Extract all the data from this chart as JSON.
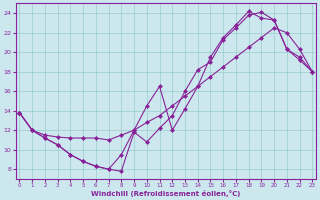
{
  "xlabel": "Windchill (Refroidissement éolien,°C)",
  "background_color": "#cce8ee",
  "grid_color": "#99cccc",
  "line_color": "#882299",
  "xlim": [
    -0.3,
    23.3
  ],
  "ylim": [
    7.0,
    25.0
  ],
  "yticks": [
    8,
    10,
    12,
    14,
    16,
    18,
    20,
    22,
    24
  ],
  "xticks": [
    0,
    1,
    2,
    3,
    4,
    5,
    6,
    7,
    8,
    9,
    10,
    11,
    12,
    13,
    14,
    15,
    16,
    17,
    18,
    19,
    20,
    21,
    22,
    23
  ],
  "curve1_x": [
    0,
    1,
    2,
    3,
    4,
    5,
    6,
    7,
    8,
    9,
    10,
    11,
    12,
    13,
    14,
    15,
    16,
    17,
    18,
    19,
    20,
    21,
    22,
    23
  ],
  "curve1_y": [
    13.8,
    12.0,
    11.2,
    10.5,
    9.5,
    8.8,
    8.3,
    8.0,
    7.8,
    11.8,
    10.8,
    12.2,
    13.5,
    16.0,
    18.2,
    19.0,
    21.3,
    22.5,
    23.8,
    24.1,
    23.3,
    20.3,
    19.2,
    18.0
  ],
  "curve2_x": [
    0,
    1,
    2,
    3,
    4,
    5,
    6,
    7,
    8,
    9,
    10,
    11,
    12,
    13,
    14,
    15,
    16,
    17,
    18,
    19,
    20,
    21,
    22,
    23
  ],
  "curve2_y": [
    13.8,
    12.0,
    11.5,
    11.3,
    11.2,
    11.2,
    11.2,
    11.0,
    11.5,
    12.0,
    12.8,
    13.5,
    14.5,
    15.5,
    16.5,
    17.5,
    18.5,
    19.5,
    20.5,
    21.5,
    22.5,
    22.0,
    20.3,
    18.0
  ],
  "curve3_x": [
    0,
    1,
    2,
    3,
    4,
    5,
    6,
    7,
    8,
    9,
    10,
    11,
    12,
    13,
    14,
    15,
    16,
    17,
    18,
    19,
    20,
    21,
    22,
    23
  ],
  "curve3_y": [
    13.8,
    12.0,
    11.2,
    10.5,
    9.5,
    8.8,
    8.3,
    8.0,
    9.5,
    12.0,
    14.5,
    16.5,
    12.0,
    14.2,
    16.5,
    19.5,
    21.5,
    22.8,
    24.2,
    23.5,
    23.3,
    20.3,
    19.5,
    18.0
  ]
}
